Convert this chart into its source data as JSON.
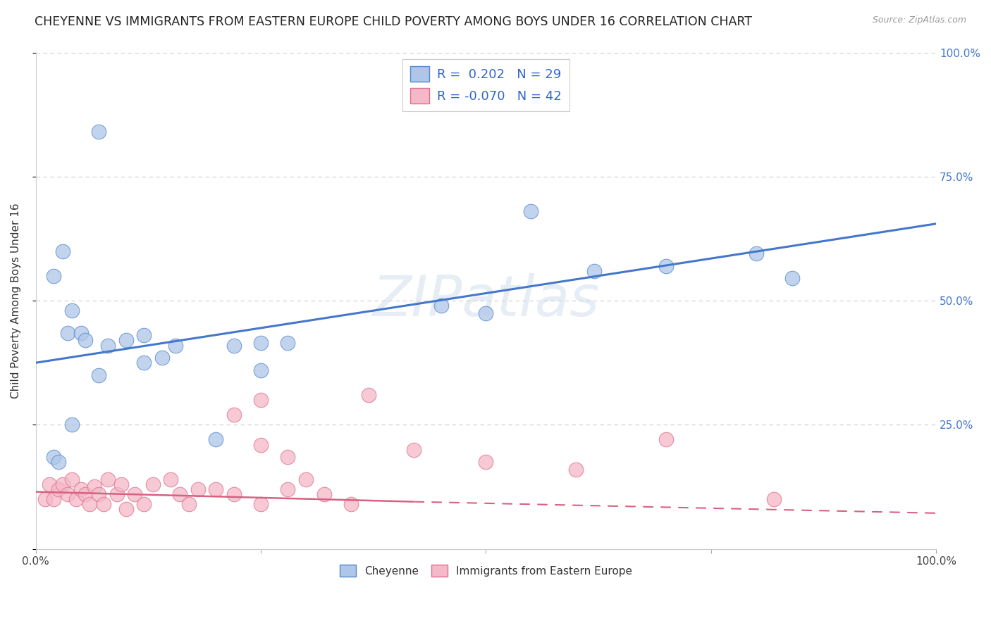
{
  "title": "CHEYENNE VS IMMIGRANTS FROM EASTERN EUROPE CHILD POVERTY AMONG BOYS UNDER 16 CORRELATION CHART",
  "source": "Source: ZipAtlas.com",
  "ylabel": "Child Poverty Among Boys Under 16",
  "cheyenne_color": "#aec6e8",
  "cheyenne_edge_color": "#5588cc",
  "cheyenne_line_color": "#4477cc",
  "eastern_europe_color": "#f4b8c8",
  "eastern_europe_edge_color": "#e07090",
  "eastern_europe_line_color": "#d96080",
  "background_color": "#ffffff",
  "watermark": "ZIPatlas",
  "legend_R_cheyenne": "0.202",
  "legend_N_cheyenne": "29",
  "legend_R_eastern": "-0.070",
  "legend_N_eastern": "42",
  "cheyenne_x": [
    0.02,
    0.025,
    0.07,
    0.03,
    0.02,
    0.04,
    0.035,
    0.05,
    0.055,
    0.08,
    0.1,
    0.12,
    0.14,
    0.155,
    0.22,
    0.25,
    0.28,
    0.25,
    0.55,
    0.7,
    0.8,
    0.84,
    0.04,
    0.07,
    0.12,
    0.2,
    0.45,
    0.5,
    0.62
  ],
  "cheyenne_y": [
    0.185,
    0.175,
    0.84,
    0.6,
    0.55,
    0.48,
    0.435,
    0.435,
    0.42,
    0.41,
    0.42,
    0.43,
    0.385,
    0.41,
    0.41,
    0.36,
    0.415,
    0.415,
    0.68,
    0.57,
    0.595,
    0.545,
    0.25,
    0.35,
    0.375,
    0.22,
    0.49,
    0.475,
    0.56
  ],
  "eastern_x": [
    0.01,
    0.015,
    0.02,
    0.025,
    0.03,
    0.035,
    0.04,
    0.045,
    0.05,
    0.055,
    0.06,
    0.065,
    0.07,
    0.075,
    0.08,
    0.09,
    0.095,
    0.1,
    0.11,
    0.12,
    0.13,
    0.15,
    0.16,
    0.17,
    0.2,
    0.22,
    0.25,
    0.28,
    0.25,
    0.3,
    0.32,
    0.35,
    0.37,
    0.18,
    0.22,
    0.25,
    0.28,
    0.42,
    0.5,
    0.6,
    0.7,
    0.82
  ],
  "eastern_y": [
    0.1,
    0.13,
    0.1,
    0.12,
    0.13,
    0.11,
    0.14,
    0.1,
    0.12,
    0.11,
    0.09,
    0.125,
    0.11,
    0.09,
    0.14,
    0.11,
    0.13,
    0.08,
    0.11,
    0.09,
    0.13,
    0.14,
    0.11,
    0.09,
    0.12,
    0.11,
    0.09,
    0.12,
    0.3,
    0.14,
    0.11,
    0.09,
    0.31,
    0.12,
    0.27,
    0.21,
    0.185,
    0.2,
    0.175,
    0.16,
    0.22,
    0.1
  ],
  "xlim": [
    0.0,
    1.0
  ],
  "ylim": [
    0.0,
    1.0
  ],
  "yticks": [
    0.0,
    0.25,
    0.5,
    0.75,
    1.0
  ],
  "ytick_labels": [
    "",
    "25.0%",
    "50.0%",
    "75.0%",
    "100.0%"
  ],
  "xtick_labels": [
    "0.0%",
    "100.0%"
  ],
  "blue_line_y0": 0.375,
  "blue_line_y1": 0.655,
  "pink_line_solid_x0": 0.0,
  "pink_line_solid_x1": 0.42,
  "pink_line_y0": 0.115,
  "pink_line_y1": 0.095,
  "pink_line_dash_x0": 0.42,
  "pink_line_dash_x1": 1.0,
  "pink_line_dash_y0": 0.095,
  "pink_line_dash_y1": 0.072,
  "title_fontsize": 12.5,
  "label_fontsize": 11,
  "tick_fontsize": 11
}
